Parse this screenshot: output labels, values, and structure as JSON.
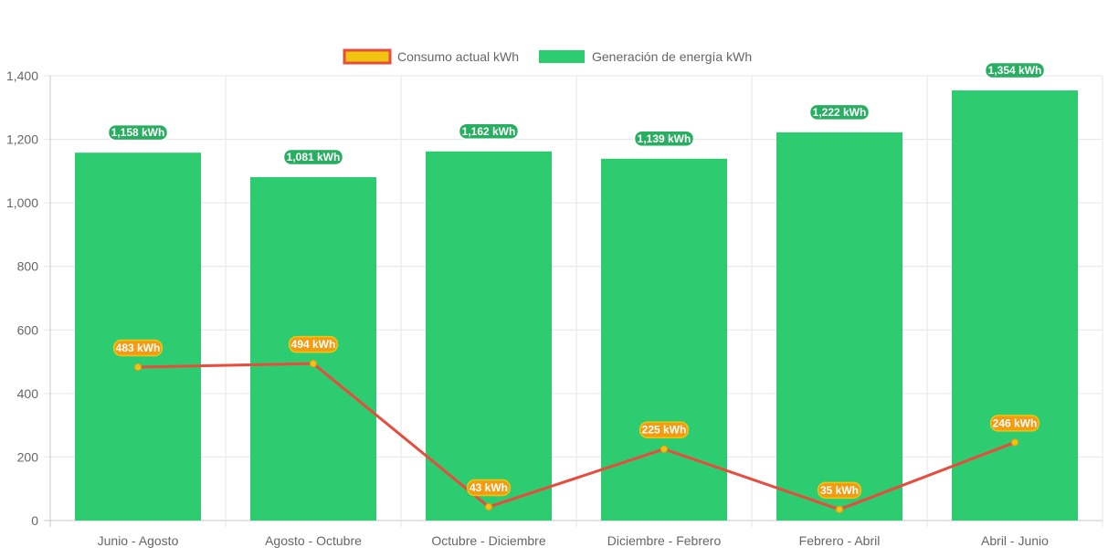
{
  "chart_data": {
    "type": "bar",
    "categories": [
      "Junio - Agosto",
      "Agosto - Octubre",
      "Octubre - Diciembre",
      "Diciembre - Febrero",
      "Febrero - Abril",
      "Abril - Junio"
    ],
    "ylim": [
      0,
      1400
    ],
    "yticks": [
      0,
      200,
      400,
      600,
      800,
      1000,
      1200,
      1400
    ],
    "ytick_labels": [
      "0",
      "200",
      "400",
      "600",
      "800",
      "1,000",
      "1,200",
      "1,400"
    ],
    "grid": true,
    "legend_position": "top",
    "series": [
      {
        "name": "Consumo actual kWh",
        "type": "line",
        "values": [
          483,
          494,
          43,
          225,
          35,
          246
        ],
        "labels": [
          "483 kWh",
          "494 kWh",
          "43 kWh",
          "225 kWh",
          "35 kWh",
          "246 kWh"
        ],
        "color": "#e74c3c",
        "fill_color": "#f1c40f",
        "label_bg": "#f39c12"
      },
      {
        "name": "Generación de energía kWh",
        "type": "bar",
        "values": [
          1158,
          1081,
          1162,
          1139,
          1222,
          1354
        ],
        "labels": [
          "1,158 kWh",
          "1,081 kWh",
          "1,162 kWh",
          "1,139 kWh",
          "1,222 kWh",
          "1,354 kWh"
        ],
        "color": "#2ecc71",
        "label_bg": "#27ae60"
      }
    ]
  }
}
